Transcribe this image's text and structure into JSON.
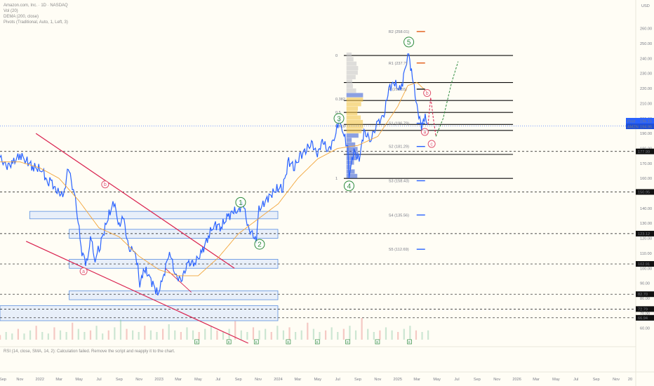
{
  "header": {
    "symbol_line": "Amazon.com, Inc. · 1D · NASDAQ",
    "indicator_1": "Vol (20)",
    "indicator_2": "DEMA (200, close)",
    "indicator_3": "Pivots (Traditional, Auto, 1, Left, 3)",
    "currency": "USD"
  },
  "rsi_error": "RSI (14, close, SMA, 14, 2): Calculation failed. Remove the script and reapply it to the chart.",
  "price_tags": {
    "post_label": "Post",
    "post_value": "195.15",
    "symbol_label": "AMZN",
    "last_value": "194.95"
  },
  "colors": {
    "price_line": "#2962ff",
    "dema": "#f2a53a",
    "channel": "#d9214e",
    "pivot_r": "#e25b16",
    "pivot_s": "#2962ff",
    "box_fill": "#d6e4fb",
    "box_stroke": "#5b8fe0",
    "wave_green": "#2e8b3d",
    "wave_red": "#e0566f"
  },
  "chart_data": {
    "type": "line",
    "x_range": [
      "2021-09-01",
      "2026-12-31"
    ],
    "y_range": [
      50,
      265
    ],
    "x_ticks": [
      {
        "label": "Sep",
        "date": "2021-09-01"
      },
      {
        "label": "Nov",
        "date": "2021-11-01"
      },
      {
        "label": "2022",
        "date": "2022-01-01"
      },
      {
        "label": "Mar",
        "date": "2022-03-01"
      },
      {
        "label": "May",
        "date": "2022-05-01"
      },
      {
        "label": "Jul",
        "date": "2022-07-01"
      },
      {
        "label": "Sep",
        "date": "2022-09-01"
      },
      {
        "label": "Nov",
        "date": "2022-11-01"
      },
      {
        "label": "2023",
        "date": "2023-01-01"
      },
      {
        "label": "Mar",
        "date": "2023-03-01"
      },
      {
        "label": "May",
        "date": "2023-05-01"
      },
      {
        "label": "Jul",
        "date": "2023-07-01"
      },
      {
        "label": "Sep",
        "date": "2023-09-01"
      },
      {
        "label": "Nov",
        "date": "2023-11-01"
      },
      {
        "label": "2024",
        "date": "2024-01-01"
      },
      {
        "label": "Mar",
        "date": "2024-03-01"
      },
      {
        "label": "May",
        "date": "2024-05-01"
      },
      {
        "label": "Jul",
        "date": "2024-07-01"
      },
      {
        "label": "Sep",
        "date": "2024-09-01"
      },
      {
        "label": "Nov",
        "date": "2024-11-01"
      },
      {
        "label": "2025",
        "date": "2025-01-01"
      },
      {
        "label": "Mar",
        "date": "2025-03-01"
      },
      {
        "label": "May",
        "date": "2025-05-01"
      },
      {
        "label": "Jul",
        "date": "2025-07-01"
      },
      {
        "label": "Sep",
        "date": "2025-09-01"
      },
      {
        "label": "Nov",
        "date": "2025-11-01"
      },
      {
        "label": "2026",
        "date": "2026-01-01"
      },
      {
        "label": "Mar",
        "date": "2026-03-01"
      },
      {
        "label": "May",
        "date": "2026-05-01"
      },
      {
        "label": "Jul",
        "date": "2026-07-01"
      },
      {
        "label": "Sep",
        "date": "2026-09-01"
      },
      {
        "label": "Nov",
        "date": "2026-11-01"
      },
      {
        "label": "20",
        "date": "2026-12-31"
      }
    ],
    "y_ticks": [
      60,
      70,
      80,
      90,
      100,
      110,
      120,
      130,
      140,
      150,
      160,
      170,
      180,
      190,
      200,
      210,
      220,
      230,
      240,
      250,
      260
    ],
    "price_labels": [
      {
        "value": 177.99,
        "label": "177.99"
      },
      {
        "value": 150.95,
        "label": "150.95"
      },
      {
        "value": 123.12,
        "label": "123.12"
      },
      {
        "value": 102.91,
        "label": "102.91"
      },
      {
        "value": 82.7,
        "label": "82.70"
      },
      {
        "value": 72.79,
        "label": "72.79"
      },
      {
        "value": 66.94,
        "label": "66.94"
      }
    ],
    "series": [
      {
        "name": "AMZN",
        "points": [
          [
            "2021-09-01",
            174
          ],
          [
            "2021-09-20",
            168
          ],
          [
            "2021-10-10",
            170
          ],
          [
            "2021-11-01",
            176
          ],
          [
            "2021-11-20",
            172
          ],
          [
            "2021-12-10",
            168
          ],
          [
            "2022-01-10",
            165
          ],
          [
            "2022-01-25",
            157
          ],
          [
            "2022-02-04",
            158
          ],
          [
            "2022-02-20",
            152
          ],
          [
            "2022-03-15",
            148
          ],
          [
            "2022-03-29",
            168
          ],
          [
            "2022-04-20",
            145
          ],
          [
            "2022-05-10",
            111
          ],
          [
            "2022-05-24",
            103
          ],
          [
            "2022-06-08",
            122
          ],
          [
            "2022-06-16",
            104
          ],
          [
            "2022-07-05",
            116
          ],
          [
            "2022-08-01",
            136
          ],
          [
            "2022-08-16",
            144
          ],
          [
            "2022-09-01",
            128
          ],
          [
            "2022-09-13",
            135
          ],
          [
            "2022-09-30",
            113
          ],
          [
            "2022-10-15",
            112
          ],
          [
            "2022-10-28",
            103
          ],
          [
            "2022-11-03",
            87
          ],
          [
            "2022-11-14",
            100
          ],
          [
            "2022-12-01",
            95
          ],
          [
            "2022-12-28",
            83
          ],
          [
            "2023-01-10",
            90
          ],
          [
            "2023-02-02",
            112
          ],
          [
            "2023-02-20",
            95
          ],
          [
            "2023-03-10",
            92
          ],
          [
            "2023-03-30",
            103
          ],
          [
            "2023-04-20",
            104
          ],
          [
            "2023-05-12",
            110
          ],
          [
            "2023-06-01",
            122
          ],
          [
            "2023-06-20",
            129
          ],
          [
            "2023-07-10",
            128
          ],
          [
            "2023-07-31",
            134
          ],
          [
            "2023-08-15",
            138
          ],
          [
            "2023-09-01",
            138
          ],
          [
            "2023-09-15",
            144
          ],
          [
            "2023-10-01",
            127
          ],
          [
            "2023-10-26",
            119
          ],
          [
            "2023-11-03",
            139
          ],
          [
            "2023-12-01",
            147
          ],
          [
            "2023-12-28",
            153
          ],
          [
            "2024-01-15",
            154
          ],
          [
            "2024-02-02",
            171
          ],
          [
            "2024-02-20",
            168
          ],
          [
            "2024-03-10",
            175
          ],
          [
            "2024-03-28",
            180
          ],
          [
            "2024-04-15",
            183
          ],
          [
            "2024-04-30",
            175
          ],
          [
            "2024-05-15",
            186
          ],
          [
            "2024-06-01",
            178
          ],
          [
            "2024-06-20",
            186
          ],
          [
            "2024-07-05",
            198
          ],
          [
            "2024-07-15",
            193
          ],
          [
            "2024-08-01",
            180
          ],
          [
            "2024-08-05",
            162
          ],
          [
            "2024-08-20",
            178
          ],
          [
            "2024-09-05",
            173
          ],
          [
            "2024-09-20",
            191
          ],
          [
            "2024-10-10",
            186
          ],
          [
            "2024-11-01",
            197
          ],
          [
            "2024-11-20",
            202
          ],
          [
            "2024-12-05",
            220
          ],
          [
            "2024-12-20",
            224
          ],
          [
            "2025-01-10",
            218
          ],
          [
            "2025-01-25",
            235
          ],
          [
            "2025-02-04",
            242
          ],
          [
            "2025-02-15",
            228
          ],
          [
            "2025-03-01",
            208
          ],
          [
            "2025-03-15",
            194
          ],
          [
            "2025-03-26",
            201
          ],
          [
            "2025-04-04",
            196
          ]
        ]
      },
      {
        "name": "DEMA",
        "points": [
          [
            "2021-09-01",
            171
          ],
          [
            "2021-11-01",
            171
          ],
          [
            "2022-01-01",
            167
          ],
          [
            "2022-03-01",
            160
          ],
          [
            "2022-05-01",
            145
          ],
          [
            "2022-07-01",
            127
          ],
          [
            "2022-09-01",
            121
          ],
          [
            "2022-11-01",
            108
          ],
          [
            "2023-01-01",
            99
          ],
          [
            "2023-03-01",
            95
          ],
          [
            "2023-05-01",
            95
          ],
          [
            "2023-07-01",
            107
          ],
          [
            "2023-09-01",
            123
          ],
          [
            "2023-11-01",
            133
          ],
          [
            "2024-01-01",
            143
          ],
          [
            "2024-03-01",
            160
          ],
          [
            "2024-05-01",
            173
          ],
          [
            "2024-07-01",
            180
          ],
          [
            "2024-09-01",
            182
          ],
          [
            "2024-11-01",
            188
          ],
          [
            "2025-01-01",
            208
          ],
          [
            "2025-02-01",
            222
          ],
          [
            "2025-03-01",
            224
          ],
          [
            "2025-04-04",
            217
          ]
        ]
      }
    ],
    "pivots": [
      {
        "label": "R2 (258.01)",
        "value": 258.01,
        "kind": "r"
      },
      {
        "label": "R1 (237.?)",
        "value": 237,
        "kind": "r"
      },
      {
        "label": "P (219.55)",
        "value": 219.55,
        "kind": "p"
      },
      {
        "label": "S1 (196.79)",
        "value": 196.79,
        "kind": "s"
      },
      {
        "label": "S2 (181.29)",
        "value": 181.29,
        "kind": "s"
      },
      {
        "label": "S3 (158.43)",
        "value": 158.43,
        "kind": "s"
      },
      {
        "label": "S4 (135.56)",
        "value": 135.56,
        "kind": "s"
      },
      {
        "label": "S5 (112.69)",
        "value": 112.69,
        "kind": "s"
      }
    ],
    "fib_levels": [
      {
        "label": "0",
        "value": 242
      },
      {
        "label": "0.382",
        "value": 213
      },
      {
        "label": "0.5",
        "value": 204
      },
      {
        "label": "0.618",
        "value": 195
      },
      {
        "label": "1",
        "value": 160
      }
    ],
    "horizontal_lines": [
      242,
      224,
      212,
      204,
      196,
      192,
      176,
      160
    ],
    "dashed_levels": [
      177.99,
      150.95,
      123.12,
      102.91,
      82.7,
      72.79,
      66.94
    ],
    "support_boxes": [
      {
        "from": "2021-12-01",
        "to": "2023-12-31",
        "low": 133,
        "high": 138
      },
      {
        "from": "2022-04-01",
        "to": "2023-12-31",
        "low": 120,
        "high": 126
      },
      {
        "from": "2022-04-01",
        "to": "2023-12-31",
        "low": 100,
        "high": 106
      },
      {
        "from": "2022-04-01",
        "to": "2023-12-31",
        "low": 79,
        "high": 85
      },
      {
        "from": "2021-09-01",
        "to": "2023-12-31",
        "low": 65,
        "high": 75
      }
    ],
    "waves": [
      {
        "label": "1",
        "date": "2023-09-08",
        "value": 144
      },
      {
        "label": "2",
        "date": "2023-11-05",
        "value": 116
      },
      {
        "label": "3",
        "date": "2024-07-05",
        "value": 200
      },
      {
        "label": "4",
        "date": "2024-08-05",
        "value": 155
      },
      {
        "label": "5",
        "date": "2025-02-04",
        "value": 251
      },
      {
        "label": "a",
        "date": "2022-05-15",
        "value": 98
      },
      {
        "label": "b",
        "date": "2022-07-20",
        "value": 156
      },
      {
        "label": "b",
        "date": "2025-04-01",
        "value": 217
      },
      {
        "label": "a",
        "date": "2025-03-25",
        "value": 191
      },
      {
        "label": "c",
        "date": "2025-04-15",
        "value": 183
      }
    ],
    "volume": [
      3,
      5,
      4,
      7,
      4,
      6,
      9,
      5,
      4,
      8,
      6,
      5,
      11,
      7,
      5,
      6,
      9,
      4,
      6,
      8,
      13,
      7,
      6,
      5,
      9,
      6,
      5,
      7,
      10,
      6,
      5,
      8,
      6,
      5,
      7,
      9,
      6,
      5,
      7,
      12,
      6,
      5,
      8,
      6,
      7,
      5,
      9,
      6,
      8,
      5,
      6,
      11,
      7,
      5,
      6,
      8,
      5,
      7,
      9,
      6,
      14,
      7,
      5,
      6,
      8,
      6,
      5,
      7,
      9,
      6,
      5,
      6
    ],
    "earnings_markers": [
      "2023-04-27",
      "2023-08-03",
      "2023-10-26",
      "2024-02-01",
      "2024-04-30",
      "2024-08-01",
      "2024-10-31",
      "2025-02-06"
    ]
  }
}
